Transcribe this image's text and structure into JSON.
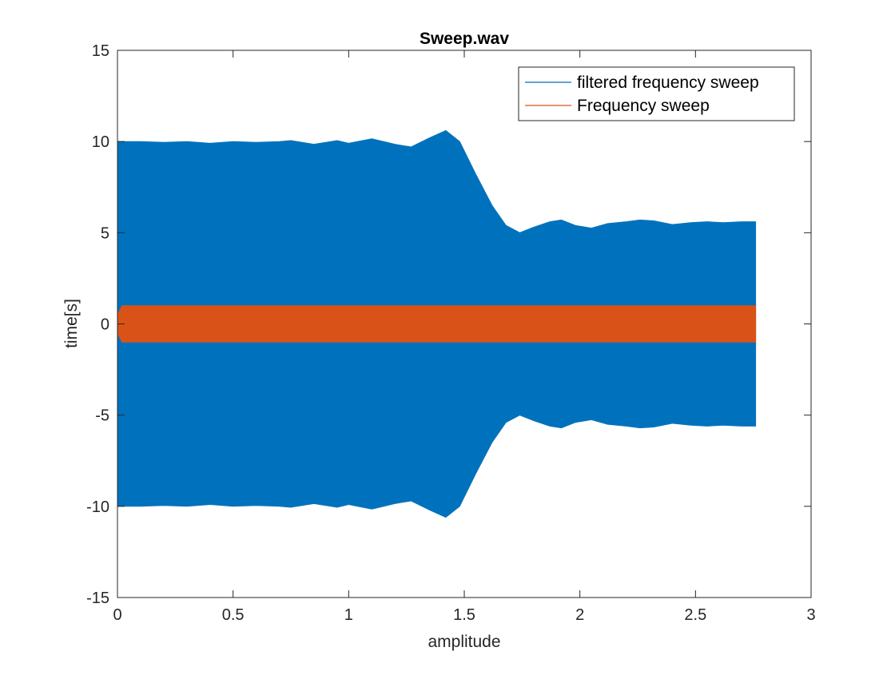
{
  "chart_data": {
    "type": "area",
    "title": "Sweep.wav",
    "xlabel": "amplitude",
    "ylabel": "time[s]",
    "xlim": [
      0,
      3
    ],
    "ylim": [
      -15,
      15
    ],
    "xticks": [
      0,
      0.5,
      1,
      1.5,
      2,
      2.5,
      3
    ],
    "xtick_labels": [
      "0",
      "0.5",
      "1",
      "1.5",
      "2",
      "2.5",
      "3"
    ],
    "yticks": [
      15,
      10,
      5,
      0,
      -5,
      -10,
      -15
    ],
    "ytick_labels": [
      "15",
      "10",
      "5",
      "0",
      "-5",
      "-10",
      "-15"
    ],
    "grid": false,
    "legend_position": "top-right",
    "series": [
      {
        "name": "filtered frequency sweep",
        "color": "#0072BD",
        "envelope": {
          "x": [
            0,
            0.05,
            0.1,
            0.2,
            0.3,
            0.4,
            0.5,
            0.6,
            0.7,
            0.75,
            0.85,
            0.95,
            1.0,
            1.1,
            1.2,
            1.27,
            1.35,
            1.42,
            1.48,
            1.55,
            1.62,
            1.68,
            1.74,
            1.8,
            1.87,
            1.92,
            1.98,
            2.05,
            2.12,
            2.2,
            2.26,
            2.32,
            2.4,
            2.48,
            2.55,
            2.62,
            2.7,
            2.76
          ],
          "upper": [
            10.0,
            10.0,
            10.0,
            9.95,
            10.0,
            9.9,
            10.0,
            9.95,
            10.0,
            10.05,
            9.85,
            10.05,
            9.9,
            10.15,
            9.85,
            9.7,
            10.2,
            10.6,
            10.0,
            8.2,
            6.5,
            5.4,
            5.0,
            5.3,
            5.6,
            5.7,
            5.4,
            5.25,
            5.5,
            5.6,
            5.7,
            5.65,
            5.45,
            5.55,
            5.6,
            5.55,
            5.6,
            5.6
          ],
          "lower": [
            -10.0,
            -10.0,
            -10.0,
            -9.95,
            -10.0,
            -9.9,
            -10.0,
            -9.95,
            -10.0,
            -10.05,
            -9.85,
            -10.05,
            -9.9,
            -10.15,
            -9.85,
            -9.7,
            -10.2,
            -10.6,
            -10.0,
            -8.2,
            -6.5,
            -5.4,
            -5.0,
            -5.3,
            -5.6,
            -5.7,
            -5.4,
            -5.25,
            -5.5,
            -5.6,
            -5.7,
            -5.65,
            -5.45,
            -5.55,
            -5.6,
            -5.55,
            -5.6,
            -5.6
          ]
        }
      },
      {
        "name": "Frequency sweep",
        "color": "#D95319",
        "envelope": {
          "x": [
            0,
            0.02,
            2.76
          ],
          "upper": [
            0.5,
            1.0,
            1.0
          ],
          "lower": [
            -0.5,
            -1.0,
            -1.0
          ]
        }
      }
    ]
  }
}
